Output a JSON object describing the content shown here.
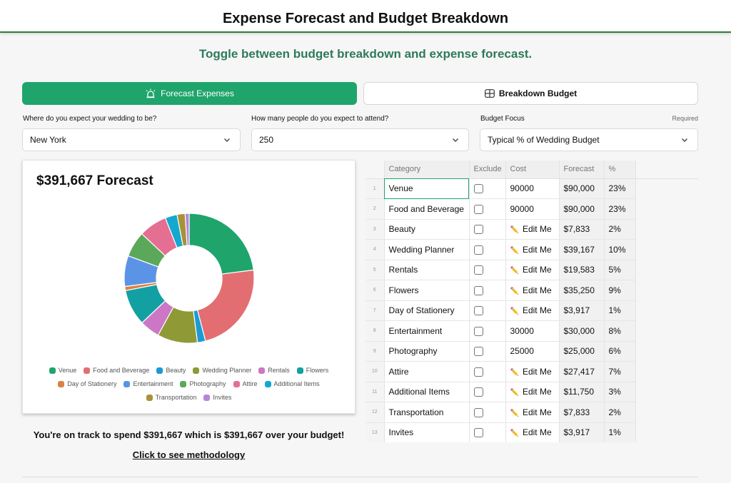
{
  "header": {
    "title": "Expense Forecast and Budget Breakdown"
  },
  "subtitle": "Toggle between budget breakdown and expense forecast.",
  "tabs": {
    "forecast_label": "Forecast Expenses",
    "breakdown_label": "Breakdown Budget"
  },
  "form": {
    "location": {
      "label": "Where do you expect your wedding to be?",
      "value": "New York"
    },
    "attendees": {
      "label": "How many people do you expect to attend?",
      "value": "250"
    },
    "focus": {
      "label": "Budget Focus",
      "required": "Required",
      "value": "Typical % of Wedding Budget"
    }
  },
  "forecast_card": {
    "title": "$391,667 Forecast"
  },
  "chart_data": {
    "type": "pie",
    "title": "$391,667 Forecast",
    "legend_position": "bottom",
    "categories": [
      "Venue",
      "Food and Beverage",
      "Beauty",
      "Wedding Planner",
      "Rentals",
      "Flowers",
      "Day of Stationery",
      "Entertainment",
      "Photography",
      "Attire",
      "Additional Items",
      "Transportation",
      "Invites"
    ],
    "values": [
      90000,
      90000,
      7833,
      39167,
      19583,
      35250,
      3917,
      30000,
      25000,
      27417,
      11750,
      7833,
      3917
    ],
    "colors": [
      "#1fa46c",
      "#e36e72",
      "#1a9bd4",
      "#8f9a36",
      "#cc76c6",
      "#13a0a2",
      "#d98244",
      "#5b94e6",
      "#5ba85b",
      "#e56f93",
      "#14a8cf",
      "#a89237",
      "#b287d8"
    ]
  },
  "summary": {
    "track_text": "You're on track to spend $391,667 which is $391,667 over your budget!",
    "methodology_link": "Click to see methodology"
  },
  "table": {
    "headers": [
      "Category",
      "Exclude",
      "Cost",
      "Forecast",
      "%"
    ],
    "rows": [
      {
        "n": "1",
        "category": "Venue",
        "cost": "90000",
        "edit": false,
        "forecast": "$90,000",
        "pct": "23%"
      },
      {
        "n": "2",
        "category": "Food and Beverage",
        "cost": "90000",
        "edit": false,
        "forecast": "$90,000",
        "pct": "23%"
      },
      {
        "n": "3",
        "category": "Beauty",
        "cost": "Edit Me",
        "edit": true,
        "forecast": "$7,833",
        "pct": "2%"
      },
      {
        "n": "4",
        "category": "Wedding Planner",
        "cost": "Edit Me",
        "edit": true,
        "forecast": "$39,167",
        "pct": "10%"
      },
      {
        "n": "5",
        "category": "Rentals",
        "cost": "Edit Me",
        "edit": true,
        "forecast": "$19,583",
        "pct": "5%"
      },
      {
        "n": "6",
        "category": "Flowers",
        "cost": "Edit Me",
        "edit": true,
        "forecast": "$35,250",
        "pct": "9%"
      },
      {
        "n": "7",
        "category": "Day of Stationery",
        "cost": "Edit Me",
        "edit": true,
        "forecast": "$3,917",
        "pct": "1%"
      },
      {
        "n": "8",
        "category": "Entertainment",
        "cost": "30000",
        "edit": false,
        "forecast": "$30,000",
        "pct": "8%"
      },
      {
        "n": "9",
        "category": "Photography",
        "cost": "25000",
        "edit": false,
        "forecast": "$25,000",
        "pct": "6%"
      },
      {
        "n": "10",
        "category": "Attire",
        "cost": "Edit Me",
        "edit": true,
        "forecast": "$27,417",
        "pct": "7%"
      },
      {
        "n": "11",
        "category": "Additional Items",
        "cost": "Edit Me",
        "edit": true,
        "forecast": "$11,750",
        "pct": "3%"
      },
      {
        "n": "12",
        "category": "Transportation",
        "cost": "Edit Me",
        "edit": true,
        "forecast": "$7,833",
        "pct": "2%"
      },
      {
        "n": "13",
        "category": "Invites",
        "cost": "Edit Me",
        "edit": true,
        "forecast": "$3,917",
        "pct": "1%"
      }
    ]
  }
}
